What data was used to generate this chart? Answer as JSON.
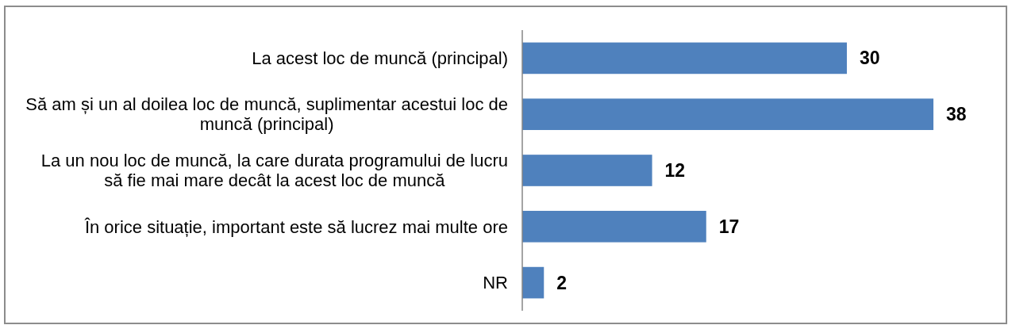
{
  "chart_data": {
    "type": "bar",
    "orientation": "horizontal",
    "categories": [
      "La acest loc de muncă (principal)",
      "Să am și un al doilea loc de muncă, suplimentar acestui loc de muncă (principal)",
      "La un nou loc de muncă, la care durata programului de lucru să fie mai mare decât la acest loc de muncă",
      "În orice situație, important este să lucrez mai multe ore",
      "NR"
    ],
    "values": [
      30,
      38,
      12,
      17,
      2
    ],
    "color": "#4f81bd",
    "data_labels": true,
    "tick_labels": "y"
  }
}
